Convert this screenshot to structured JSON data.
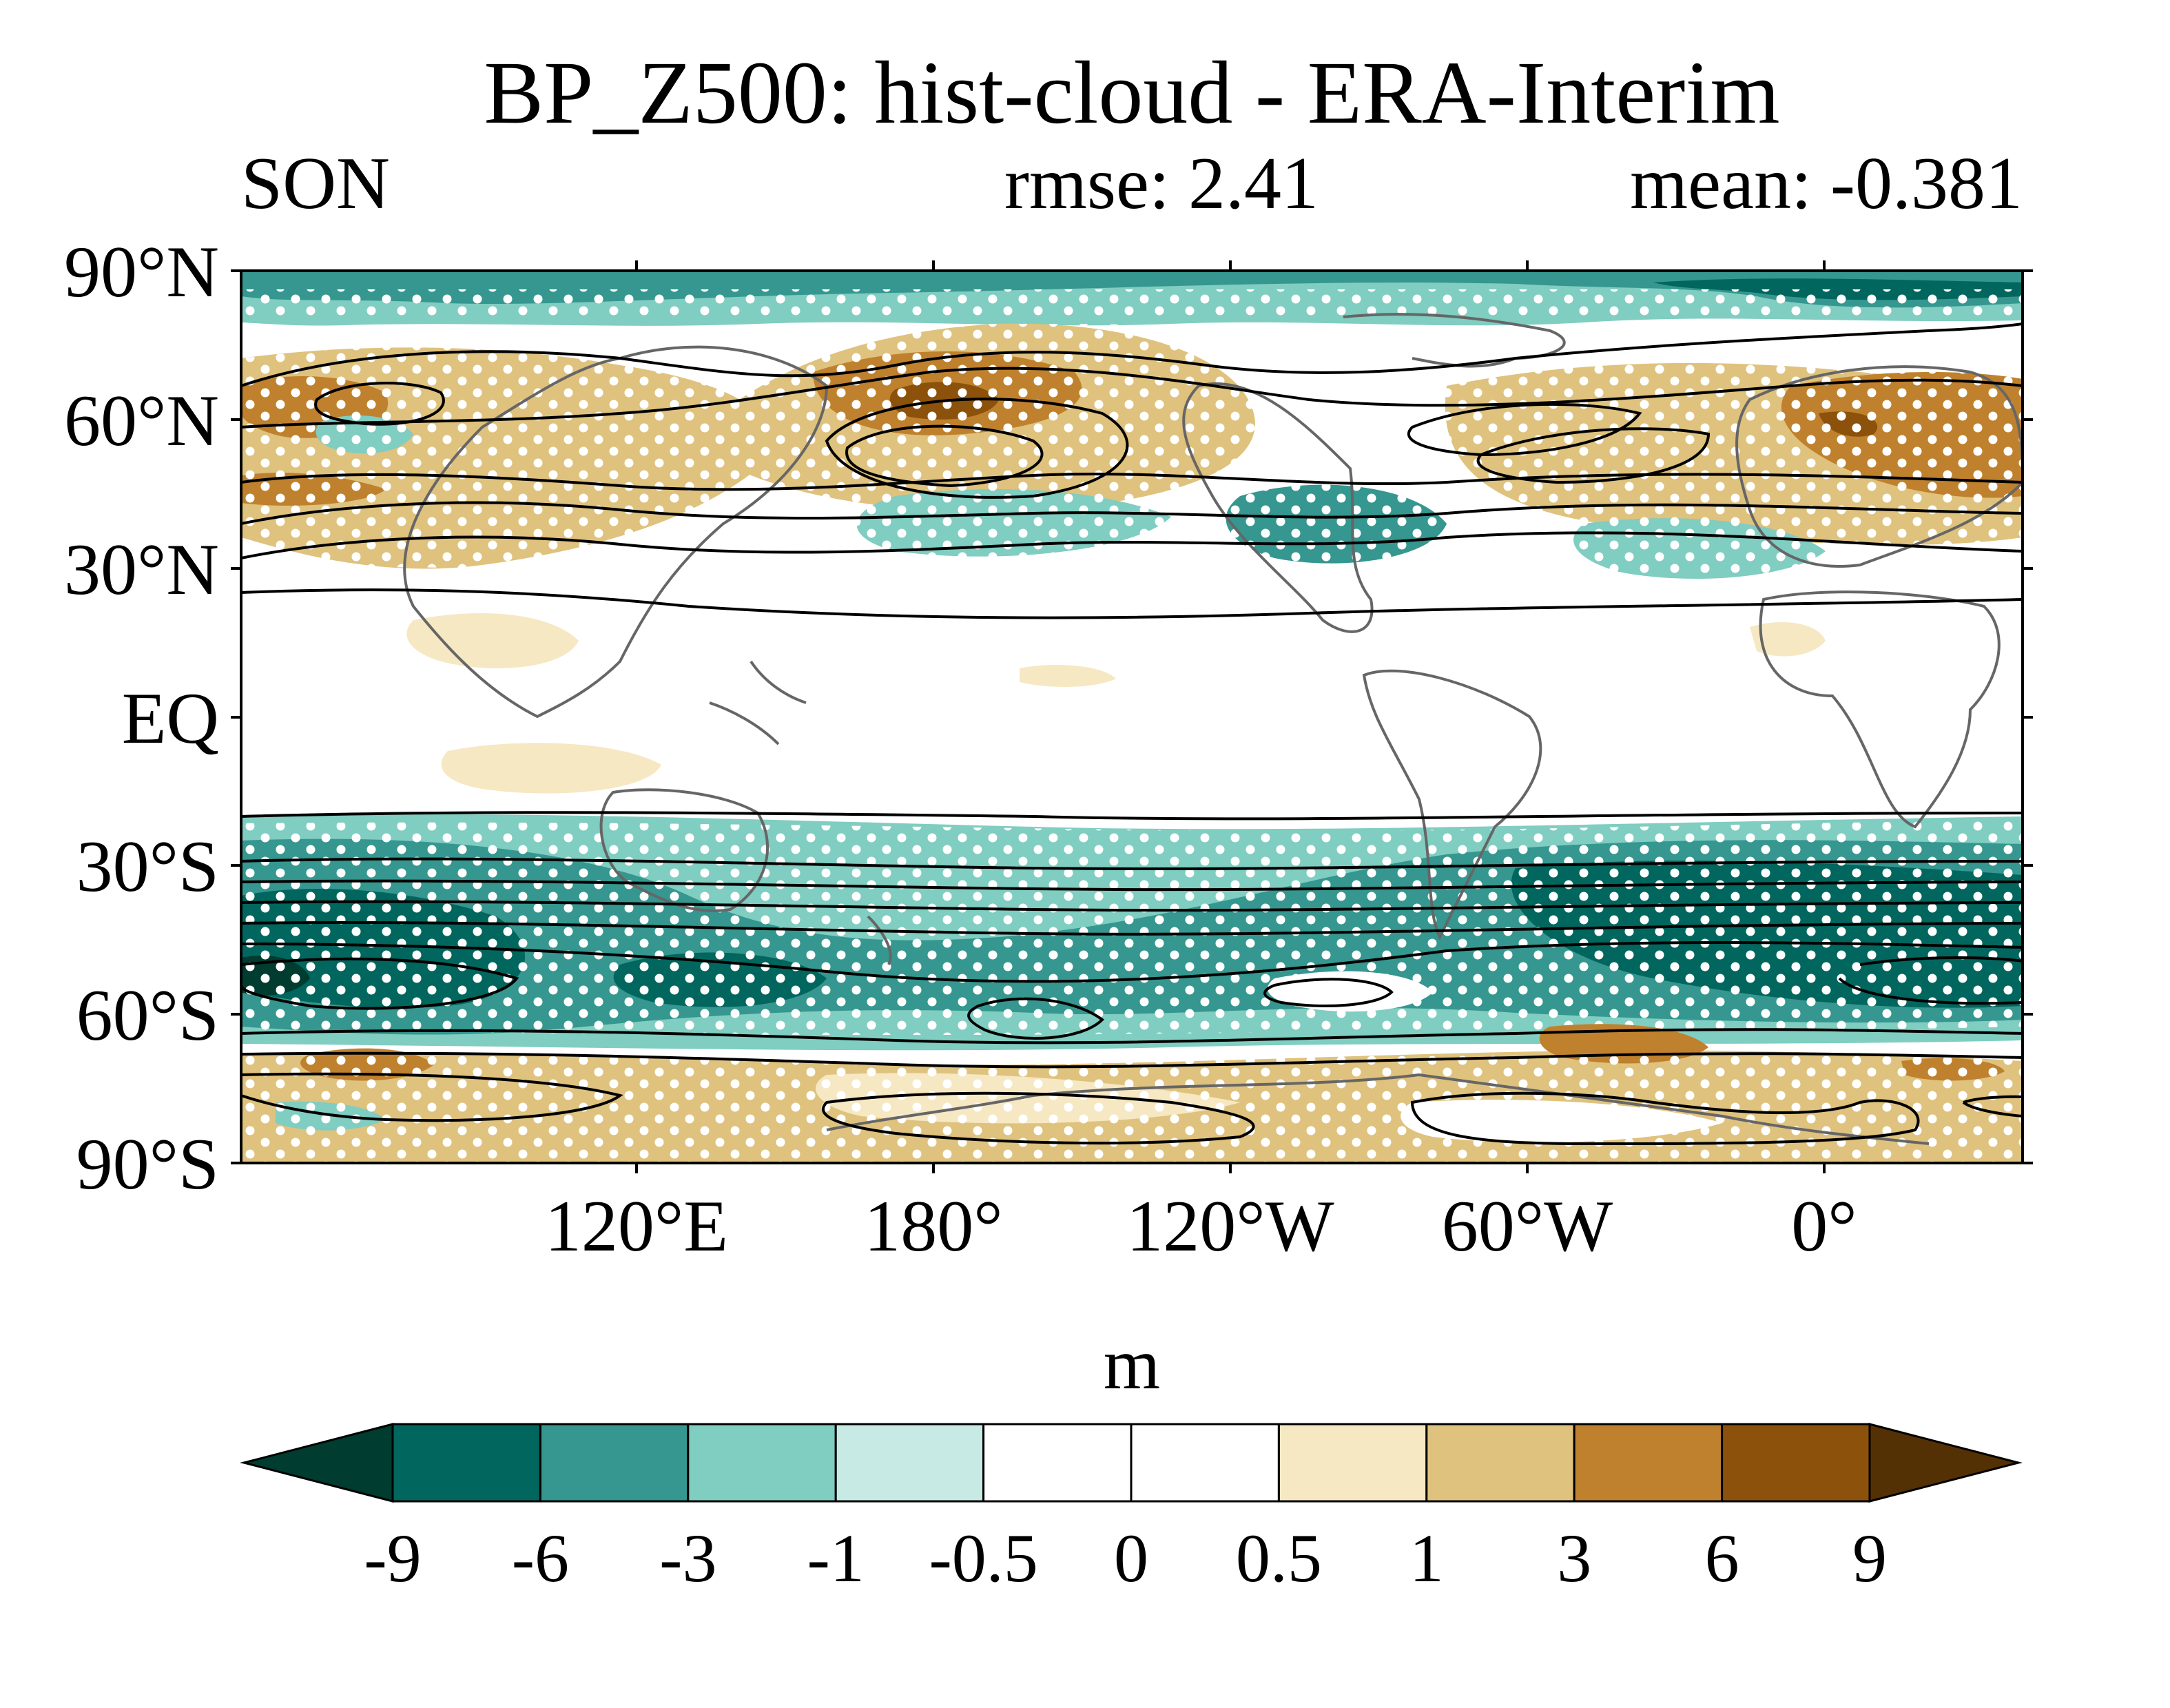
{
  "title": "BP_Z500: hist-cloud - ERA-Interim",
  "subtitle_left": "SON",
  "subtitle_center": "rmse: 2.41",
  "subtitle_right": "mean: -0.381",
  "lat_labels": [
    "90°N",
    "60°N",
    "30°N",
    "EQ",
    "30°S",
    "60°S",
    "90°S"
  ],
  "lon_labels": [
    "120°E",
    "180°",
    "120°W",
    "60°W",
    "0°"
  ],
  "colorbar": {
    "unit": "m",
    "levels": [
      "-9",
      "-6",
      "-3",
      "-1",
      "-0.5",
      "0",
      "0.5",
      "1",
      "3",
      "6",
      "9"
    ],
    "colors": [
      "#003c30",
      "#01665e",
      "#35978f",
      "#80cdc1",
      "#c7eae5",
      "#ffffff",
      "#ffffff",
      "#f6e8c3",
      "#dfc27d",
      "#bf812d",
      "#8c510a",
      "#543005"
    ]
  }
}
